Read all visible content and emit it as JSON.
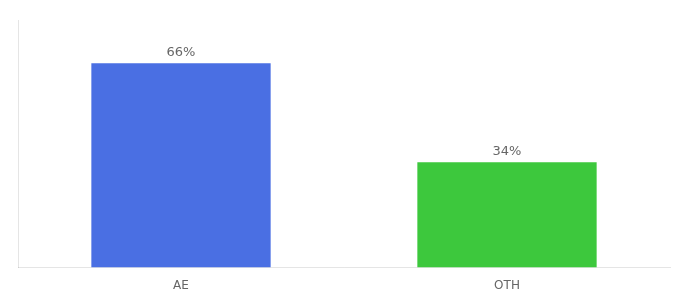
{
  "chart_data": {
    "type": "bar",
    "categories": [
      "AE",
      "OTH"
    ],
    "values": [
      66,
      34
    ],
    "value_labels": [
      "66%",
      "34%"
    ],
    "colors": [
      "#4A6FE3",
      "#3DC83D"
    ],
    "ylim": [
      0,
      80
    ],
    "grid": false,
    "tick_labels": "x",
    "data_labels": true
  }
}
